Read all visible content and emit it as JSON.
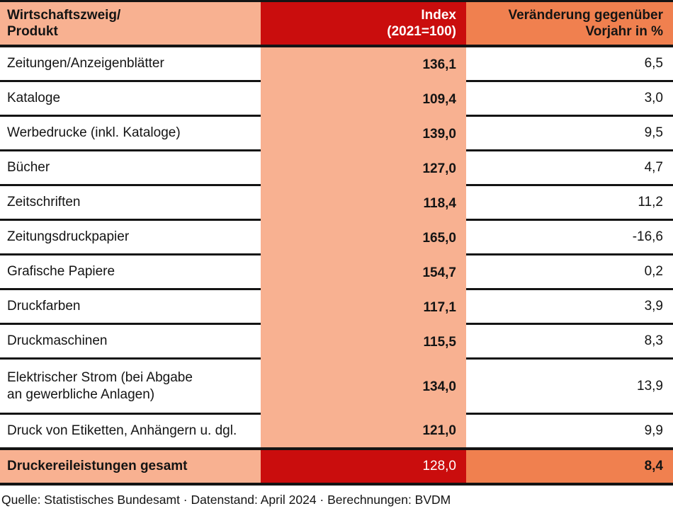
{
  "table": {
    "header": {
      "col1": [
        "Wirtschaftszweig/",
        "Produkt"
      ],
      "col2": [
        "Index",
        "(2021=100)"
      ],
      "col3": [
        "Veränderung gegenüber",
        "Vorjahr in %"
      ]
    },
    "rows": [
      {
        "label": "Zeitungen/Anzeigenblätter",
        "index": "136,1",
        "change": "6,5"
      },
      {
        "label": "Kataloge",
        "index": "109,4",
        "change": "3,0"
      },
      {
        "label": "Werbedrucke (inkl. Kataloge)",
        "index": "139,0",
        "change": "9,5"
      },
      {
        "label": "Bücher",
        "index": "127,0",
        "change": "4,7"
      },
      {
        "label": "Zeitschriften",
        "index": "118,4",
        "change": "11,2"
      },
      {
        "label": "Zeitungsdruckpapier",
        "index": "165,0",
        "change": "-16,6"
      },
      {
        "label": "Grafische Papiere",
        "index": "154,7",
        "change": "0,2"
      },
      {
        "label": "Druckfarben",
        "index": "117,1",
        "change": "3,9"
      },
      {
        "label": "Druckmaschinen",
        "index": "115,5",
        "change": "8,3"
      },
      {
        "label": "Elektrischer Strom (bei Abgabe\nan gewerbliche Anlagen)",
        "index": "134,0",
        "change": "13,9"
      },
      {
        "label": "Druck von Etiketten, Anhängern u. dgl.",
        "index": "121,0",
        "change": "9,9"
      }
    ],
    "total": {
      "label": "Druckereileistungen gesamt",
      "index": "128,0",
      "change": "8,4"
    }
  },
  "footer": {
    "source": "Quelle: Statistisches Bundesamt · Datenstand: April 2024 · Berechnungen: BVDM"
  },
  "colors": {
    "salmon": "#f8b191",
    "red": "#ca0d0d",
    "orange": "#f0804f",
    "line": "#141414"
  },
  "chart_data": {
    "type": "table",
    "title": "",
    "columns": [
      "Wirtschaftszweig/Produkt",
      "Index (2021=100)",
      "Veränderung gegenüber Vorjahr in %"
    ],
    "rows": [
      {
        "product": "Zeitungen/Anzeigenblätter",
        "index_2021_100": 136.1,
        "change_vs_prev_year_pct": 6.5
      },
      {
        "product": "Kataloge",
        "index_2021_100": 109.4,
        "change_vs_prev_year_pct": 3.0
      },
      {
        "product": "Werbedrucke (inkl. Kataloge)",
        "index_2021_100": 139.0,
        "change_vs_prev_year_pct": 9.5
      },
      {
        "product": "Bücher",
        "index_2021_100": 127.0,
        "change_vs_prev_year_pct": 4.7
      },
      {
        "product": "Zeitschriften",
        "index_2021_100": 118.4,
        "change_vs_prev_year_pct": 11.2
      },
      {
        "product": "Zeitungsdruckpapier",
        "index_2021_100": 165.0,
        "change_vs_prev_year_pct": -16.6
      },
      {
        "product": "Grafische Papiere",
        "index_2021_100": 154.7,
        "change_vs_prev_year_pct": 0.2
      },
      {
        "product": "Druckfarben",
        "index_2021_100": 117.1,
        "change_vs_prev_year_pct": 3.9
      },
      {
        "product": "Druckmaschinen",
        "index_2021_100": 115.5,
        "change_vs_prev_year_pct": 8.3
      },
      {
        "product": "Elektrischer Strom (bei Abgabe an gewerbliche Anlagen)",
        "index_2021_100": 134.0,
        "change_vs_prev_year_pct": 13.9
      },
      {
        "product": "Druck von Etiketten, Anhängern u. dgl.",
        "index_2021_100": 121.0,
        "change_vs_prev_year_pct": 9.9
      },
      {
        "product": "Druckereileistungen gesamt",
        "index_2021_100": 128.0,
        "change_vs_prev_year_pct": 8.4
      }
    ],
    "source_note": "Quelle: Statistisches Bundesamt · Datenstand: April 2024 · Berechnungen: BVDM"
  }
}
